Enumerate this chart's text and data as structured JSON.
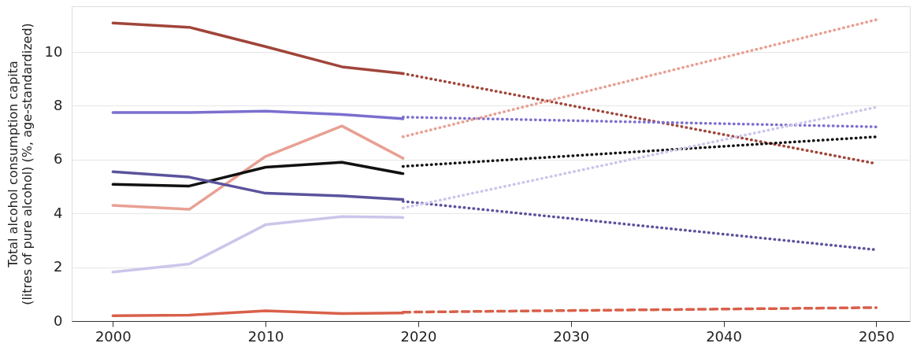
{
  "chart_data": {
    "type": "line",
    "ylabel": "Total alcohol consumption capita\n(litres of pure alcohol) (%, age-standardized)",
    "xlim": [
      1997.3,
      2052.2
    ],
    "xticks": [
      2000,
      2010,
      2020,
      2030,
      2040,
      2050
    ],
    "ylim": [
      0,
      11.7
    ],
    "yticks": [
      0,
      2,
      4,
      6,
      8,
      10
    ],
    "grid": "y",
    "legend": false,
    "marker": "none",
    "series": [
      {
        "color": "#a0453a",
        "line_style": "solid",
        "x": [
          2000,
          2005,
          2010,
          2015,
          2019
        ],
        "values": [
          11.08,
          10.92,
          10.2,
          9.45,
          9.2
        ]
      },
      {
        "color": "#a0453a",
        "line_style": "dotted",
        "x": [
          2019,
          2050
        ],
        "values": [
          9.2,
          5.85
        ]
      },
      {
        "color": "#7b6fcf",
        "line_style": "solid",
        "x": [
          2000,
          2005,
          2010,
          2015,
          2019
        ],
        "values": [
          7.75,
          7.75,
          7.8,
          7.68,
          7.52
        ]
      },
      {
        "color": "#7b6fcf",
        "line_style": "dotted",
        "x": [
          2019,
          2050
        ],
        "values": [
          7.58,
          7.22
        ]
      },
      {
        "color": "#e8a093",
        "line_style": "solid",
        "x": [
          2000,
          2005,
          2010,
          2015,
          2019
        ],
        "values": [
          4.3,
          4.15,
          6.12,
          7.25,
          6.05
        ]
      },
      {
        "color": "#e8a093",
        "line_style": "dotted",
        "x": [
          2019,
          2050
        ],
        "values": [
          6.85,
          11.2
        ]
      },
      {
        "color": "#111111",
        "line_style": "solid",
        "x": [
          2000,
          2005,
          2010,
          2015,
          2019
        ],
        "values": [
          5.08,
          5.02,
          5.72,
          5.9,
          5.48
        ]
      },
      {
        "color": "#111111",
        "line_style": "dotted",
        "x": [
          2019,
          2050
        ],
        "values": [
          5.75,
          6.85
        ]
      },
      {
        "color": "#5b539c",
        "line_style": "solid",
        "x": [
          2000,
          2005,
          2010,
          2015,
          2019
        ],
        "values": [
          5.55,
          5.35,
          4.75,
          4.65,
          4.52
        ]
      },
      {
        "color": "#5b539c",
        "line_style": "dotted",
        "x": [
          2019,
          2050
        ],
        "values": [
          4.45,
          2.65
        ]
      },
      {
        "color": "#cdc5ea",
        "line_style": "solid",
        "x": [
          2000,
          2005,
          2010,
          2015,
          2019
        ],
        "values": [
          1.82,
          2.12,
          3.58,
          3.88,
          3.85
        ]
      },
      {
        "color": "#cdc5ea",
        "line_style": "dotted",
        "x": [
          2019,
          2050
        ],
        "values": [
          4.2,
          7.95
        ]
      },
      {
        "color": "#d9604a",
        "line_style": "solid",
        "x": [
          2000,
          2005,
          2010,
          2015,
          2019
        ],
        "values": [
          0.2,
          0.22,
          0.38,
          0.28,
          0.3
        ]
      },
      {
        "color": "#d9604a",
        "line_style": "dashed",
        "x": [
          2019,
          2050
        ],
        "values": [
          0.33,
          0.5
        ]
      }
    ]
  }
}
